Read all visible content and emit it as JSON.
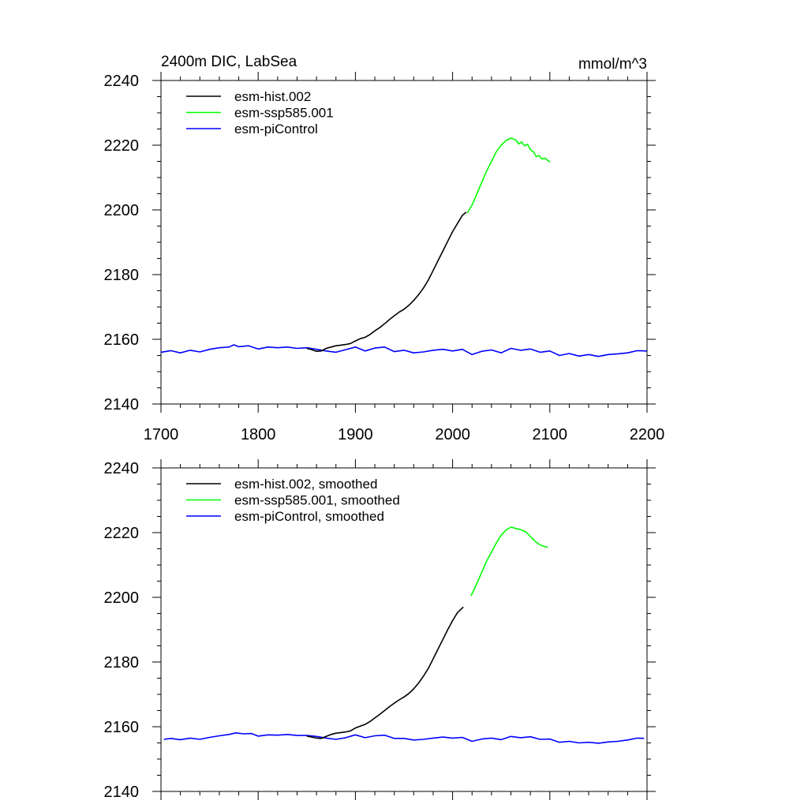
{
  "page": {
    "title_left": "2400m DIC, LabSea",
    "title_right": "mmol/m^3"
  },
  "colors": {
    "hist": "#000000",
    "ssp": "#00ff00",
    "piControl": "#0000ff"
  },
  "chart_data": [
    {
      "type": "line",
      "title": "2400m DIC, LabSea",
      "units": "mmol/m^3",
      "xlabel": "",
      "ylabel": "",
      "xlim": [
        1700,
        2200
      ],
      "ylim": [
        2140,
        2240
      ],
      "x_ticks": [
        "1700",
        "1800",
        "1900",
        "2000",
        "2100",
        "2200"
      ],
      "y_ticks": [
        "2140",
        "2160",
        "2180",
        "2200",
        "2220",
        "2240"
      ],
      "legend_position": "top-left",
      "series": [
        {
          "name": "esm-hist.002",
          "color": "#000000",
          "points": [
            [
              1850,
              2157.2
            ],
            [
              1855,
              2156.8
            ],
            [
              1860,
              2156.3
            ],
            [
              1865,
              2156.4
            ],
            [
              1870,
              2157.2
            ],
            [
              1875,
              2157.6
            ],
            [
              1880,
              2158.0
            ],
            [
              1885,
              2158.2
            ],
            [
              1890,
              2158.4
            ],
            [
              1895,
              2158.7
            ],
            [
              1900,
              2159.5
            ],
            [
              1905,
              2160.2
            ],
            [
              1910,
              2160.6
            ],
            [
              1915,
              2161.5
            ],
            [
              1920,
              2162.6
            ],
            [
              1925,
              2163.6
            ],
            [
              1930,
              2164.8
            ],
            [
              1935,
              2166.1
            ],
            [
              1940,
              2167.3
            ],
            [
              1945,
              2168.4
            ],
            [
              1950,
              2169.3
            ],
            [
              1955,
              2170.5
            ],
            [
              1960,
              2172.0
            ],
            [
              1965,
              2173.8
            ],
            [
              1970,
              2175.8
            ],
            [
              1975,
              2178.3
            ],
            [
              1980,
              2181.3
            ],
            [
              1985,
              2184.3
            ],
            [
              1990,
              2187.3
            ],
            [
              1995,
              2190.3
            ],
            [
              2000,
              2193.3
            ],
            [
              2005,
              2195.8
            ],
            [
              2010,
              2198.3
            ],
            [
              2014,
              2199.3
            ]
          ]
        },
        {
          "name": "esm-ssp585.001",
          "color": "#00ff00",
          "points": [
            [
              2015,
              2199.0
            ],
            [
              2020,
              2201.5
            ],
            [
              2025,
              2205.0
            ],
            [
              2030,
              2208.5
            ],
            [
              2035,
              2212.0
            ],
            [
              2040,
              2215.0
            ],
            [
              2045,
              2218.0
            ],
            [
              2050,
              2220.0
            ],
            [
              2055,
              2221.5
            ],
            [
              2060,
              2222.2
            ],
            [
              2065,
              2221.6
            ],
            [
              2068,
              2220.4
            ],
            [
              2071,
              2221.0
            ],
            [
              2074,
              2219.8
            ],
            [
              2077,
              2220.3
            ],
            [
              2080,
              2218.6
            ],
            [
              2083,
              2218.0
            ],
            [
              2086,
              2216.5
            ],
            [
              2089,
              2216.8
            ],
            [
              2092,
              2215.7
            ],
            [
              2095,
              2216.0
            ],
            [
              2098,
              2215.3
            ],
            [
              2100,
              2214.8
            ]
          ]
        },
        {
          "name": "esm-piControl",
          "color": "#0000ff",
          "points": [
            [
              1700,
              2156.0
            ],
            [
              1710,
              2156.5
            ],
            [
              1720,
              2155.8
            ],
            [
              1730,
              2156.6
            ],
            [
              1740,
              2156.1
            ],
            [
              1750,
              2156.9
            ],
            [
              1760,
              2157.4
            ],
            [
              1770,
              2157.6
            ],
            [
              1775,
              2158.3
            ],
            [
              1780,
              2157.7
            ],
            [
              1790,
              2158.0
            ],
            [
              1800,
              2157.0
            ],
            [
              1810,
              2157.6
            ],
            [
              1820,
              2157.4
            ],
            [
              1830,
              2157.6
            ],
            [
              1840,
              2157.2
            ],
            [
              1850,
              2157.4
            ],
            [
              1860,
              2156.9
            ],
            [
              1870,
              2156.4
            ],
            [
              1880,
              2156.0
            ],
            [
              1890,
              2156.8
            ],
            [
              1900,
              2157.6
            ],
            [
              1910,
              2156.4
            ],
            [
              1920,
              2157.3
            ],
            [
              1930,
              2157.6
            ],
            [
              1940,
              2156.2
            ],
            [
              1950,
              2156.6
            ],
            [
              1960,
              2155.8
            ],
            [
              1970,
              2156.1
            ],
            [
              1980,
              2156.6
            ],
            [
              1990,
              2156.9
            ],
            [
              2000,
              2156.4
            ],
            [
              2010,
              2156.9
            ],
            [
              2020,
              2155.3
            ],
            [
              2030,
              2156.3
            ],
            [
              2040,
              2156.7
            ],
            [
              2050,
              2155.8
            ],
            [
              2060,
              2157.2
            ],
            [
              2070,
              2156.6
            ],
            [
              2080,
              2157.0
            ],
            [
              2090,
              2156.0
            ],
            [
              2100,
              2156.4
            ],
            [
              2110,
              2155.0
            ],
            [
              2120,
              2155.6
            ],
            [
              2130,
              2154.8
            ],
            [
              2140,
              2155.3
            ],
            [
              2150,
              2154.7
            ],
            [
              2160,
              2155.3
            ],
            [
              2170,
              2155.5
            ],
            [
              2180,
              2155.8
            ],
            [
              2190,
              2156.5
            ],
            [
              2200,
              2156.4
            ]
          ]
        }
      ]
    },
    {
      "type": "line",
      "title": "",
      "xlabel": "",
      "ylabel": "",
      "xlim": [
        1700,
        2200
      ],
      "ylim": [
        2140,
        2240
      ],
      "x_ticks": [],
      "y_ticks": [
        "2140",
        "2160",
        "2180",
        "2200",
        "2220",
        "2240"
      ],
      "legend_position": "top-left",
      "series": [
        {
          "name": "esm-hist.002, smoothed",
          "color": "#000000",
          "points": [
            [
              1850,
              2157.1
            ],
            [
              1855,
              2156.8
            ],
            [
              1860,
              2156.5
            ],
            [
              1865,
              2156.4
            ],
            [
              1870,
              2157.0
            ],
            [
              1875,
              2157.6
            ],
            [
              1880,
              2158.0
            ],
            [
              1885,
              2158.2
            ],
            [
              1890,
              2158.4
            ],
            [
              1895,
              2158.7
            ],
            [
              1900,
              2159.6
            ],
            [
              1905,
              2160.2
            ],
            [
              1910,
              2160.7
            ],
            [
              1915,
              2161.6
            ],
            [
              1920,
              2162.7
            ],
            [
              1925,
              2163.8
            ],
            [
              1930,
              2165.0
            ],
            [
              1935,
              2166.2
            ],
            [
              1940,
              2167.3
            ],
            [
              1945,
              2168.3
            ],
            [
              1950,
              2169.2
            ],
            [
              1955,
              2170.3
            ],
            [
              1960,
              2171.7
            ],
            [
              1965,
              2173.5
            ],
            [
              1970,
              2175.6
            ],
            [
              1975,
              2178.0
            ],
            [
              1980,
              2181.0
            ],
            [
              1985,
              2184.0
            ],
            [
              1990,
              2187.0
            ],
            [
              1995,
              2190.0
            ],
            [
              2000,
              2192.8
            ],
            [
              2005,
              2195.3
            ],
            [
              2011,
              2197.0
            ]
          ]
        },
        {
          "name": "esm-ssp585.001, smoothed",
          "color": "#00ff00",
          "points": [
            [
              2019,
              2200.5
            ],
            [
              2025,
              2204.3
            ],
            [
              2030,
              2207.8
            ],
            [
              2035,
              2211.2
            ],
            [
              2040,
              2214.0
            ],
            [
              2045,
              2216.8
            ],
            [
              2050,
              2219.2
            ],
            [
              2055,
              2220.8
            ],
            [
              2060,
              2221.7
            ],
            [
              2065,
              2221.3
            ],
            [
              2070,
              2220.9
            ],
            [
              2075,
              2220.3
            ],
            [
              2080,
              2218.8
            ],
            [
              2085,
              2217.3
            ],
            [
              2090,
              2216.2
            ],
            [
              2095,
              2215.7
            ],
            [
              2098,
              2215.4
            ]
          ]
        },
        {
          "name": "esm-piControl, smoothed",
          "color": "#0000ff",
          "points": [
            [
              1703,
              2156.1
            ],
            [
              1710,
              2156.4
            ],
            [
              1720,
              2156.0
            ],
            [
              1730,
              2156.5
            ],
            [
              1740,
              2156.1
            ],
            [
              1750,
              2156.7
            ],
            [
              1760,
              2157.2
            ],
            [
              1770,
              2157.6
            ],
            [
              1777,
              2158.1
            ],
            [
              1785,
              2157.8
            ],
            [
              1793,
              2157.9
            ],
            [
              1800,
              2157.1
            ],
            [
              1810,
              2157.5
            ],
            [
              1820,
              2157.4
            ],
            [
              1830,
              2157.6
            ],
            [
              1840,
              2157.3
            ],
            [
              1850,
              2157.3
            ],
            [
              1860,
              2157.0
            ],
            [
              1870,
              2156.5
            ],
            [
              1880,
              2156.1
            ],
            [
              1890,
              2156.6
            ],
            [
              1900,
              2157.5
            ],
            [
              1910,
              2156.6
            ],
            [
              1920,
              2157.2
            ],
            [
              1930,
              2157.4
            ],
            [
              1940,
              2156.4
            ],
            [
              1950,
              2156.4
            ],
            [
              1960,
              2155.9
            ],
            [
              1970,
              2156.1
            ],
            [
              1980,
              2156.5
            ],
            [
              1990,
              2156.8
            ],
            [
              2000,
              2156.5
            ],
            [
              2010,
              2156.7
            ],
            [
              2020,
              2155.5
            ],
            [
              2030,
              2156.2
            ],
            [
              2040,
              2156.5
            ],
            [
              2050,
              2156.0
            ],
            [
              2060,
              2157.0
            ],
            [
              2070,
              2156.6
            ],
            [
              2080,
              2156.9
            ],
            [
              2090,
              2156.1
            ],
            [
              2100,
              2156.2
            ],
            [
              2110,
              2155.2
            ],
            [
              2120,
              2155.5
            ],
            [
              2130,
              2155.0
            ],
            [
              2140,
              2155.2
            ],
            [
              2150,
              2154.9
            ],
            [
              2160,
              2155.3
            ],
            [
              2170,
              2155.5
            ],
            [
              2180,
              2155.9
            ],
            [
              2190,
              2156.5
            ],
            [
              2197,
              2156.4
            ]
          ]
        }
      ]
    }
  ]
}
